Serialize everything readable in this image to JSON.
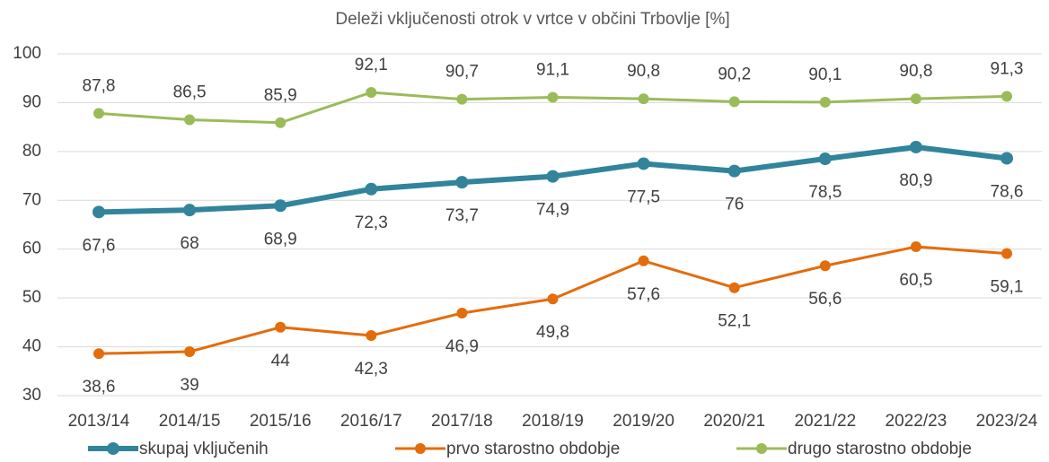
{
  "chart_data": {
    "type": "line",
    "title": "Deleži vključenosti otrok v vrtce v občini Trbovlje [%]",
    "categories": [
      "2013/14",
      "2014/15",
      "2015/16",
      "2016/17",
      "2017/18",
      "2018/19",
      "2019/20",
      "2020/21",
      "2021/22",
      "2022/23",
      "2023/24"
    ],
    "series": [
      {
        "name": "skupaj vključenih",
        "color": "#31849b",
        "values": [
          67.6,
          68,
          68.9,
          72.3,
          73.7,
          74.9,
          77.5,
          76,
          78.5,
          80.9,
          78.6
        ],
        "value_labels": [
          "67,6",
          "68",
          "68,9",
          "72,3",
          "73,7",
          "74,9",
          "77,5",
          "76",
          "78,5",
          "80,9",
          "78,6"
        ]
      },
      {
        "name": "prvo starostno obdobje",
        "color": "#e46c0a",
        "values": [
          38.6,
          39,
          44,
          42.3,
          46.9,
          49.8,
          57.6,
          52.1,
          56.6,
          60.5,
          59.1
        ],
        "value_labels": [
          "38,6",
          "39",
          "44",
          "42,3",
          "46,9",
          "49,8",
          "57,6",
          "52,1",
          "56,6",
          "60,5",
          "59,1"
        ]
      },
      {
        "name": "drugo starostno obdobje",
        "color": "#9bbb59",
        "values": [
          87.8,
          86.5,
          85.9,
          92.1,
          90.7,
          91.1,
          90.8,
          90.2,
          90.1,
          90.8,
          91.3
        ],
        "value_labels": [
          "87,8",
          "86,5",
          "85,9",
          "92,1",
          "90,7",
          "91,1",
          "90,8",
          "90,2",
          "90,1",
          "90,8",
          "91,3"
        ]
      }
    ],
    "ylim": [
      30,
      100
    ],
    "yticks": [
      30,
      40,
      50,
      60,
      70,
      80,
      90,
      100
    ],
    "grid": true,
    "legend": "bottom"
  }
}
